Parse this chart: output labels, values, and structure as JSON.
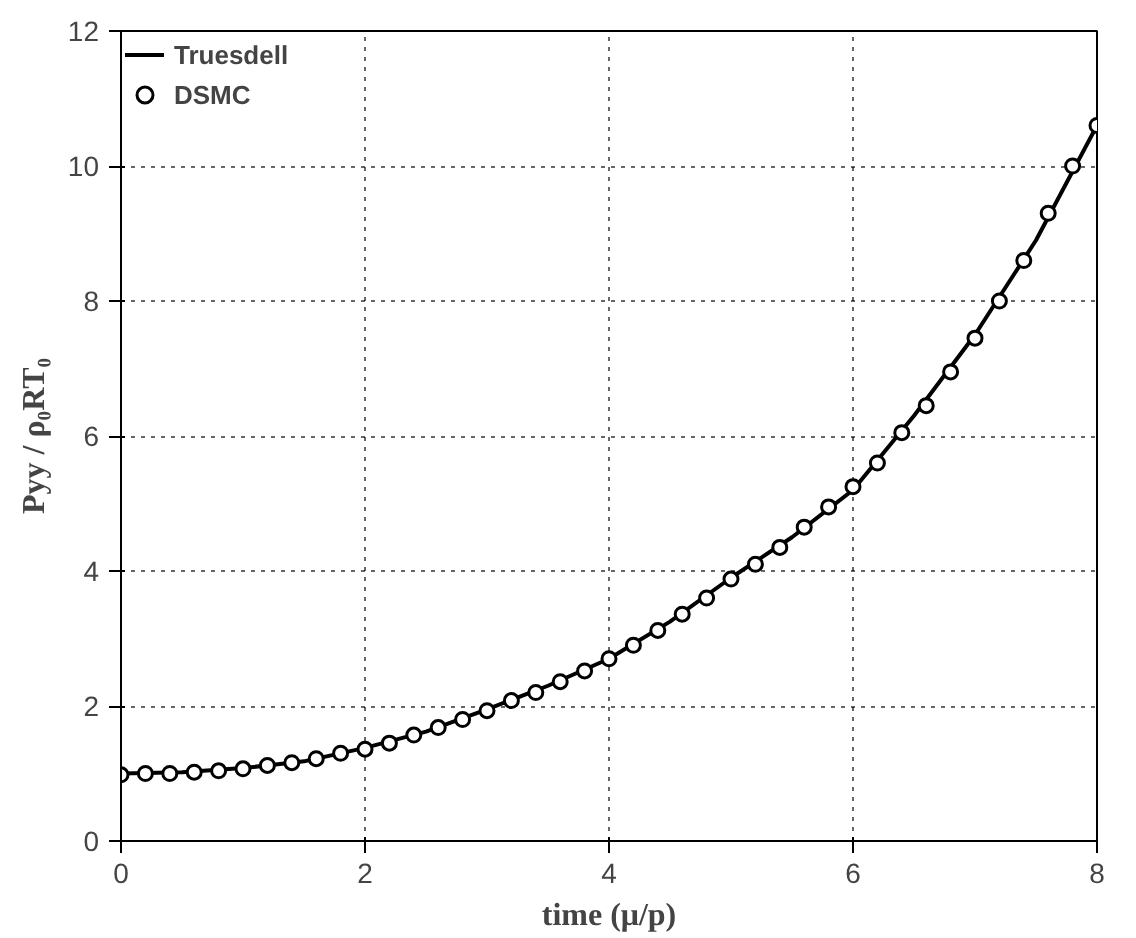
{
  "chart_data": {
    "type": "line",
    "xlabel": "time (μ/p)",
    "ylabel": "Pyy / ρ₀RT₀",
    "xlim": [
      0,
      8
    ],
    "ylim": [
      0,
      12
    ],
    "xticks": [
      0,
      2,
      4,
      6,
      8
    ],
    "yticks": [
      0,
      2,
      4,
      6,
      8,
      10,
      12
    ],
    "grid": true,
    "legend": "top left",
    "series": [
      {
        "name": "Truesdell",
        "color": "#000000",
        "marker": "none",
        "line_style": "solid",
        "x": [
          0,
          0.5,
          1,
          1.5,
          2,
          2.5,
          3,
          3.5,
          4,
          4.5,
          5,
          5.5,
          6,
          6.5,
          7,
          7.5,
          8
        ],
        "values": [
          1.0,
          1.02,
          1.08,
          1.18,
          1.38,
          1.62,
          1.95,
          2.3,
          2.7,
          3.25,
          3.9,
          4.5,
          5.2,
          6.3,
          7.5,
          8.9,
          10.6
        ]
      },
      {
        "name": "DSMC",
        "type": "scatter",
        "color": "#000000",
        "marker": "circle",
        "x": [
          0,
          0.2,
          0.4,
          0.6,
          0.8,
          1.0,
          1.2,
          1.4,
          1.6,
          1.8,
          2.0,
          2.2,
          2.4,
          2.6,
          2.8,
          3.0,
          3.2,
          3.4,
          3.6,
          3.8,
          4.0,
          4.2,
          4.4,
          4.6,
          4.8,
          5.0,
          5.2,
          5.4,
          5.6,
          5.8,
          6.0,
          6.2,
          6.4,
          6.6,
          6.8,
          7.0,
          7.2,
          7.4,
          7.6,
          7.8,
          8.0
        ],
        "values": [
          0.98,
          1.0,
          1.0,
          1.02,
          1.04,
          1.07,
          1.12,
          1.16,
          1.22,
          1.3,
          1.36,
          1.45,
          1.57,
          1.68,
          1.8,
          1.93,
          2.08,
          2.2,
          2.36,
          2.52,
          2.7,
          2.9,
          3.12,
          3.36,
          3.6,
          3.88,
          4.1,
          4.35,
          4.65,
          4.95,
          5.25,
          5.6,
          6.05,
          6.45,
          6.95,
          7.45,
          8.0,
          8.6,
          9.3,
          10.0,
          10.6
        ]
      }
    ]
  }
}
